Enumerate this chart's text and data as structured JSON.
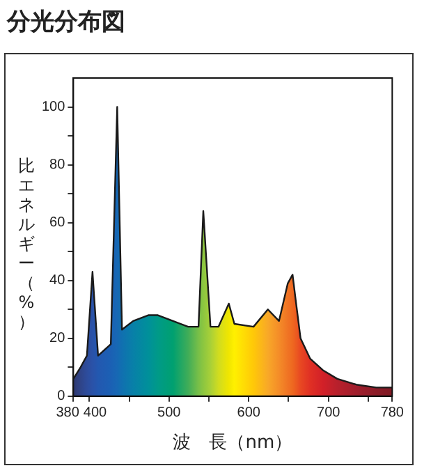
{
  "chart_data": {
    "type": "area",
    "title": "分光分布図",
    "xlabel": "波　長（nm）",
    "ylabel": "比エネルギー（%）",
    "color": "#1a1a1a",
    "x": [
      380,
      389,
      397,
      404,
      411,
      427,
      435,
      441,
      455,
      474,
      486,
      505,
      524,
      537,
      543,
      552,
      562,
      575,
      582,
      606,
      624,
      638,
      649,
      655,
      659,
      665,
      677,
      693,
      711,
      735,
      760,
      780
    ],
    "values": [
      6,
      10,
      14,
      43,
      14,
      18,
      100,
      23,
      26,
      28,
      28,
      26,
      24,
      24,
      64,
      24,
      24,
      32,
      25,
      24,
      30,
      26,
      39,
      42,
      33,
      20,
      13,
      9,
      6,
      4,
      3,
      3
    ],
    "colors": [
      "#2e3870",
      "#2f4488",
      "#2d4c9c",
      "#2a52a8",
      "#2358b0",
      "#1b60b4",
      "#1768b4",
      "#1070b0",
      "#0880a8",
      "#00909a",
      "#009a88",
      "#00a070",
      "#40ad58",
      "#78bf48",
      "#8cc640",
      "#a8d038",
      "#d0dc20",
      "#f0e600",
      "#fff000",
      "#ffc808",
      "#f8a828",
      "#f48c28",
      "#f07424",
      "#ee6820",
      "#ec5c20",
      "#e84822",
      "#e03024",
      "#d22028",
      "#b8202c",
      "#a01e2c",
      "#8c1c28",
      "#801a24"
    ],
    "xlim": [
      380,
      780
    ],
    "ylim": [
      0,
      110
    ],
    "xticks": [
      380,
      400,
      {
        "value": 450,
        "label": null
      },
      500,
      {
        "value": 550,
        "label": null
      },
      600,
      {
        "value": 650,
        "label": null
      },
      700,
      {
        "value": 750,
        "label": null
      },
      780
    ],
    "yticks": [
      0,
      {
        "value": 10,
        "label": null
      },
      20,
      {
        "value": 30,
        "label": null
      },
      40,
      {
        "value": 50,
        "label": null
      },
      60,
      {
        "value": 70,
        "label": null
      },
      80,
      {
        "value": 90,
        "label": null
      },
      100
    ],
    "grid": false
  }
}
